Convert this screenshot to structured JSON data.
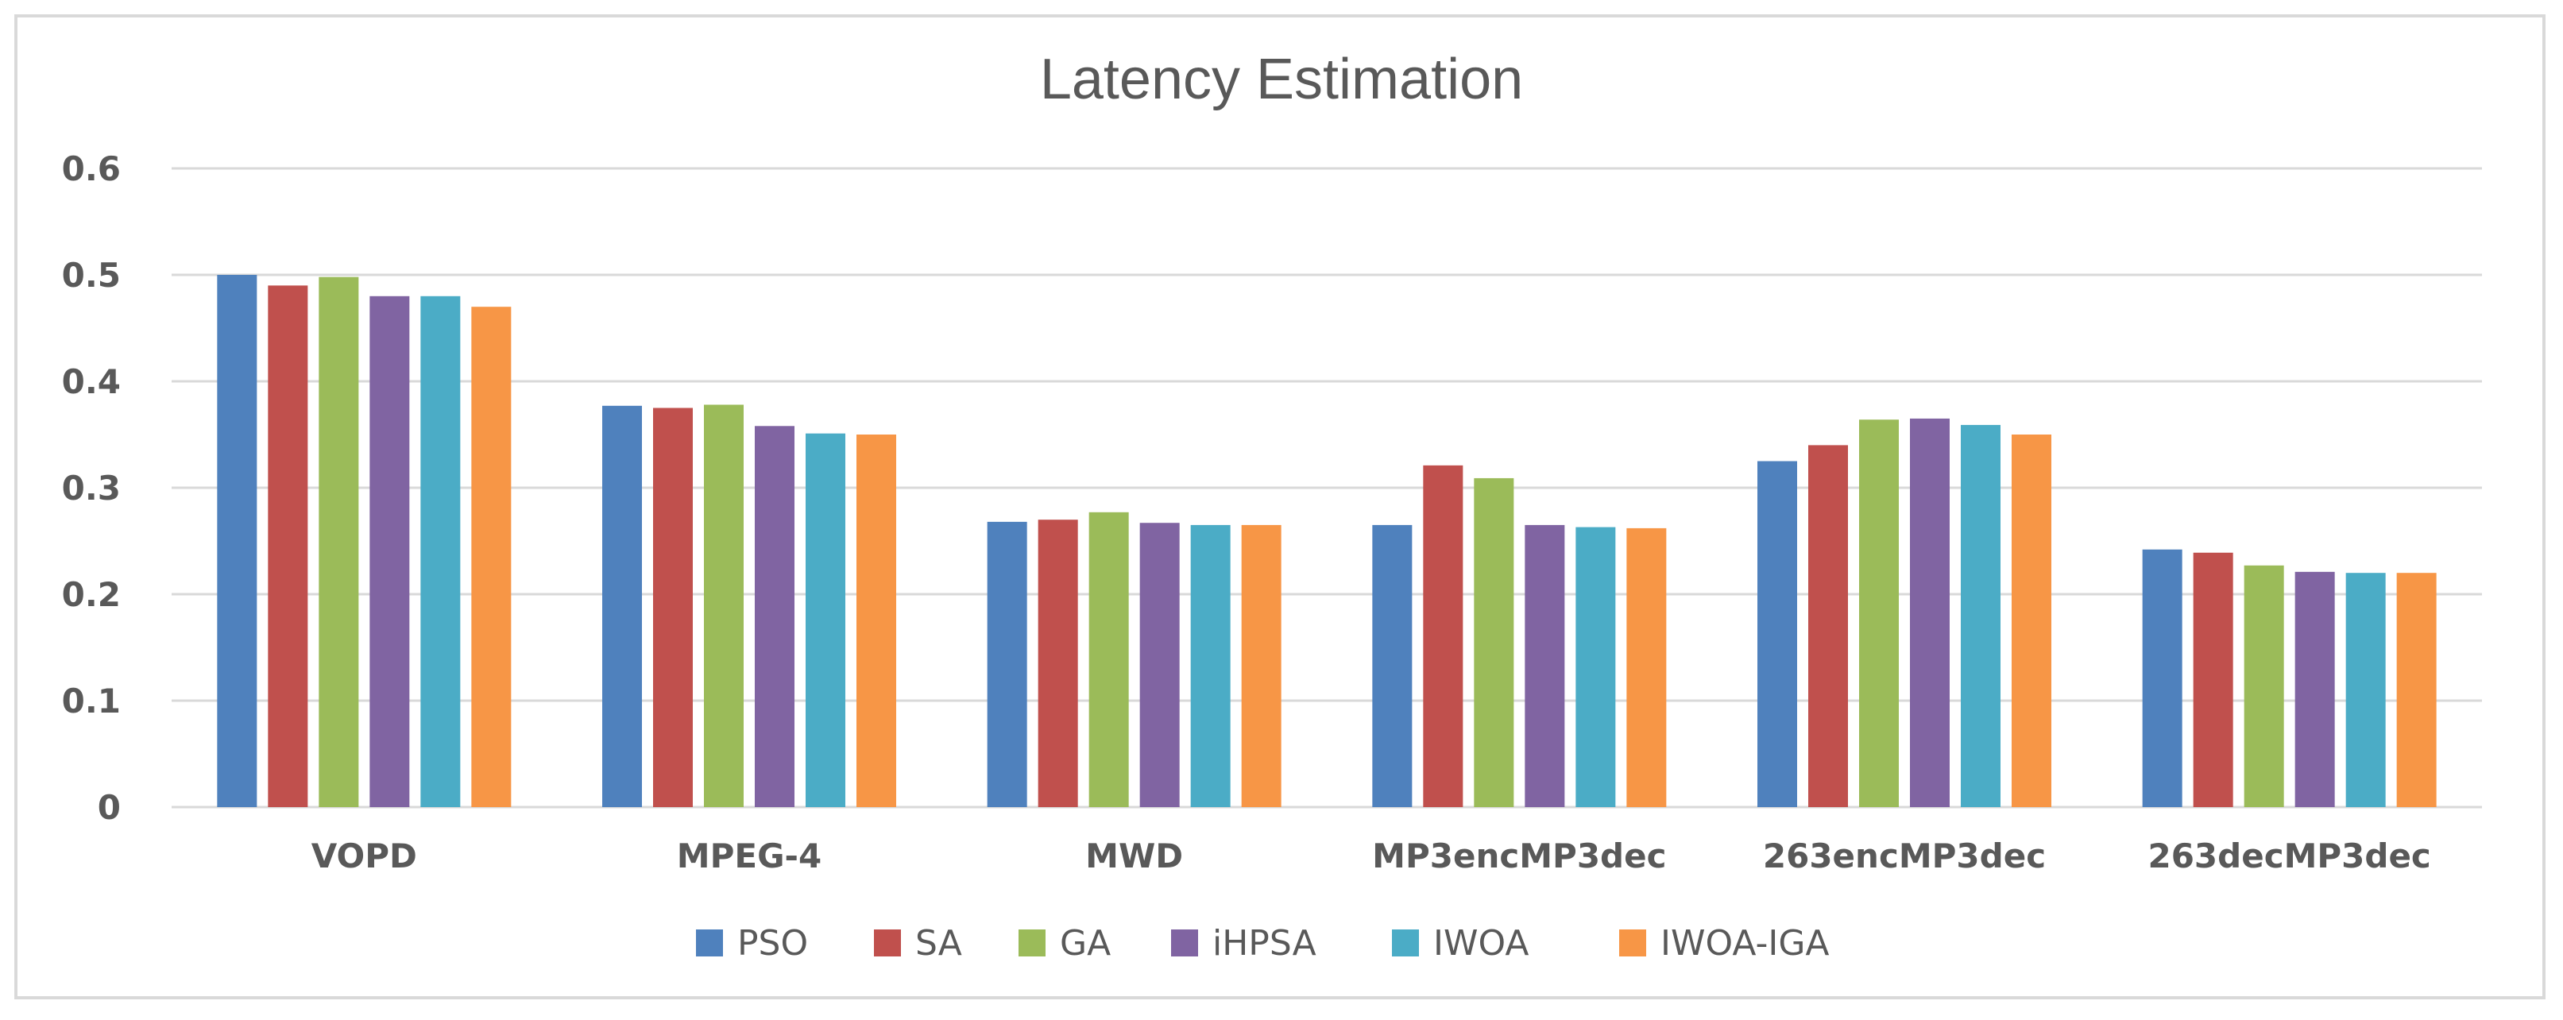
{
  "chart_data": {
    "type": "bar",
    "title": "Latency Estimation",
    "xlabel": "",
    "ylabel": "",
    "ylim": [
      0,
      0.6
    ],
    "yticks": [
      "0",
      "0.1",
      "0.2",
      "0.3",
      "0.4",
      "0.5",
      "0.6"
    ],
    "categories": [
      "VOPD",
      "MPEG-4",
      "MWD",
      "MP3encMP3dec",
      "263encMP3dec",
      "263decMP3dec"
    ],
    "series": [
      {
        "name": "PSO",
        "color": "#4f81bd",
        "values": [
          0.5,
          0.377,
          0.268,
          0.265,
          0.325,
          0.242
        ]
      },
      {
        "name": "SA",
        "color": "#c0504d",
        "values": [
          0.49,
          0.375,
          0.27,
          0.321,
          0.34,
          0.239
        ]
      },
      {
        "name": "GA",
        "color": "#9bbb59",
        "values": [
          0.498,
          0.378,
          0.277,
          0.309,
          0.364,
          0.227
        ]
      },
      {
        "name": "iHPSA",
        "color": "#8064a2",
        "values": [
          0.48,
          0.358,
          0.267,
          0.265,
          0.365,
          0.221
        ]
      },
      {
        "name": "IWOA",
        "color": "#4bacc6",
        "values": [
          0.48,
          0.351,
          0.265,
          0.263,
          0.359,
          0.22
        ]
      },
      {
        "name": "IWOA-IGA",
        "color": "#f79646",
        "values": [
          0.47,
          0.35,
          0.265,
          0.262,
          0.35,
          0.22
        ]
      }
    ],
    "grid": true,
    "legend_position": "bottom"
  }
}
